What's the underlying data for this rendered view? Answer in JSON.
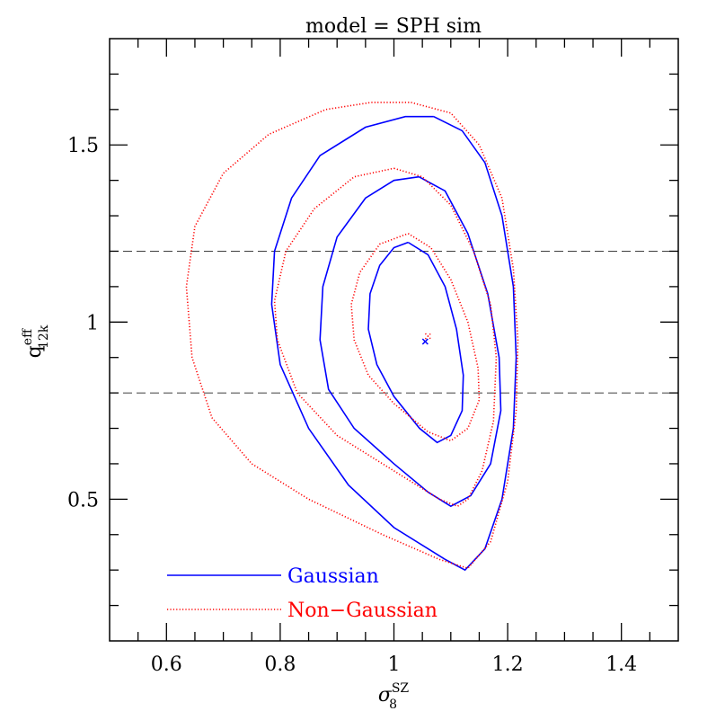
{
  "chart_data": {
    "type": "contour",
    "title": "model = SPH sim",
    "xlabel": {
      "base": "σ",
      "sup": "SZ",
      "sub": "8"
    },
    "ylabel": {
      "base": "q",
      "sup": "eff",
      "sub": "12k"
    },
    "xlim": [
      0.5,
      1.5
    ],
    "ylim": [
      0.1,
      1.8
    ],
    "xticks": [
      0.6,
      0.8,
      1,
      1.2,
      1.4
    ],
    "xminorticks": [
      0.55,
      0.65,
      0.7,
      0.75,
      0.85,
      0.9,
      0.95,
      1.05,
      1.1,
      1.15,
      1.25,
      1.3,
      1.35,
      1.45
    ],
    "yticks": [
      0.5,
      1,
      1.5
    ],
    "yminorticks": [
      0.2,
      0.3,
      0.4,
      0.6,
      0.7,
      0.8,
      0.9,
      1.1,
      1.2,
      1.3,
      1.4,
      1.6,
      1.7
    ],
    "hlines": [
      0.8,
      1.2
    ],
    "legend": "lower left",
    "series": [
      {
        "name": "Gaussian",
        "color": "#0000ff",
        "style": "solid",
        "best_fit": [
          1.055,
          0.945
        ],
        "contours": [
          {
            "x": [
              1.025,
              1.06,
              1.09,
              1.11,
              1.122,
              1.12,
              1.1,
              1.076,
              1.045,
              1.0,
              0.97,
              0.955,
              0.958,
              0.975,
              1.0,
              1.025
            ],
            "y": [
              1.225,
              1.19,
              1.1,
              0.98,
              0.85,
              0.75,
              0.68,
              0.66,
              0.7,
              0.79,
              0.88,
              0.98,
              1.08,
              1.16,
              1.21,
              1.225
            ]
          },
          {
            "x": [
              1.044,
              1.09,
              1.13,
              1.165,
              1.185,
              1.188,
              1.17,
              1.135,
              1.1,
              1.06,
              1.0,
              0.93,
              0.885,
              0.87,
              0.875,
              0.9,
              0.95,
              1.0,
              1.044
            ],
            "y": [
              1.41,
              1.37,
              1.25,
              1.08,
              0.9,
              0.75,
              0.6,
              0.51,
              0.48,
              0.52,
              0.6,
              0.7,
              0.81,
              0.95,
              1.1,
              1.24,
              1.35,
              1.4,
              1.41
            ]
          },
          {
            "x": [
              1.07,
              1.12,
              1.16,
              1.19,
              1.21,
              1.215,
              1.21,
              1.19,
              1.16,
              1.125,
              1.09,
              1.0,
              0.92,
              0.85,
              0.8,
              0.785,
              0.79,
              0.82,
              0.87,
              0.95,
              1.02,
              1.07
            ],
            "y": [
              1.58,
              1.54,
              1.45,
              1.3,
              1.1,
              0.9,
              0.7,
              0.5,
              0.36,
              0.3,
              0.33,
              0.42,
              0.54,
              0.7,
              0.88,
              1.05,
              1.2,
              1.35,
              1.47,
              1.55,
              1.58,
              1.58
            ]
          }
        ]
      },
      {
        "name": "Non−Gaussian",
        "color": "#ff0000",
        "style": "dotted",
        "best_fit": [
          1.06,
          0.96
        ],
        "contours": [
          {
            "x": [
              1.025,
              1.065,
              1.1,
              1.13,
              1.148,
              1.15,
              1.13,
              1.1,
              1.06,
              1.0,
              0.955,
              0.93,
              0.925,
              0.94,
              0.975,
              1.025
            ],
            "y": [
              1.25,
              1.21,
              1.12,
              1.0,
              0.87,
              0.78,
              0.7,
              0.665,
              0.69,
              0.77,
              0.85,
              0.95,
              1.05,
              1.14,
              1.22,
              1.25
            ]
          },
          {
            "x": [
              1.0,
              1.05,
              1.1,
              1.14,
              1.17,
              1.18,
              1.175,
              1.155,
              1.13,
              1.112,
              1.08,
              1.0,
              0.9,
              0.83,
              0.795,
              0.79,
              0.81,
              0.86,
              0.93,
              1.0
            ],
            "y": [
              1.434,
              1.41,
              1.33,
              1.2,
              1.05,
              0.9,
              0.72,
              0.58,
              0.5,
              0.48,
              0.5,
              0.58,
              0.68,
              0.8,
              0.95,
              1.06,
              1.2,
              1.32,
              1.41,
              1.434
            ]
          },
          {
            "x": [
              1.03,
              1.1,
              1.15,
              1.19,
              1.21,
              1.218,
              1.215,
              1.2,
              1.17,
              1.13,
              1.08,
              0.98,
              0.85,
              0.75,
              0.68,
              0.645,
              0.635,
              0.65,
              0.7,
              0.78,
              0.88,
              0.96,
              1.03
            ],
            "y": [
              1.62,
              1.59,
              1.5,
              1.35,
              1.15,
              0.95,
              0.75,
              0.55,
              0.38,
              0.305,
              0.33,
              0.4,
              0.5,
              0.6,
              0.73,
              0.9,
              1.1,
              1.27,
              1.42,
              1.53,
              1.6,
              1.62,
              1.62
            ]
          }
        ]
      }
    ]
  }
}
